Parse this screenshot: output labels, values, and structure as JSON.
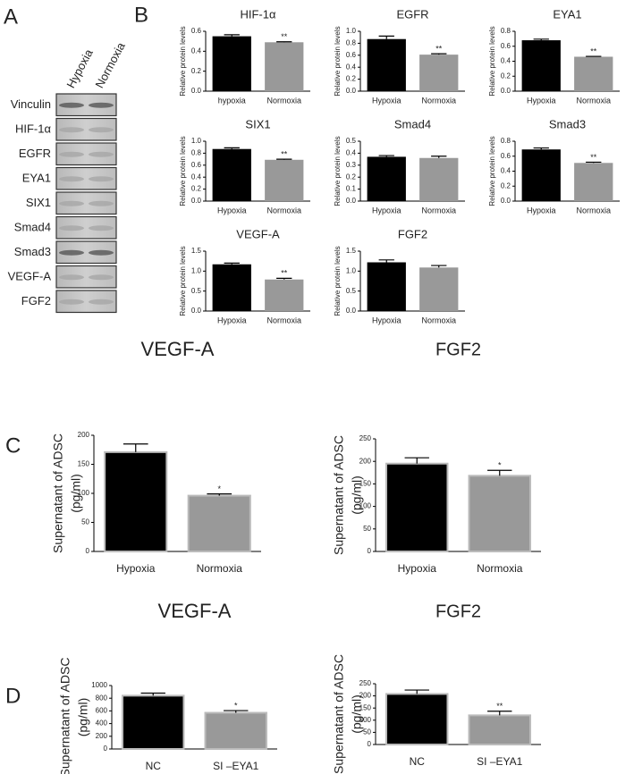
{
  "panel_labels": [
    "A",
    "B",
    "C",
    "D"
  ],
  "blot": {
    "columns": [
      "Hypoxia",
      "Normoxia"
    ],
    "rows": [
      "Vinculin",
      "HIF-1α",
      "EGFR",
      "EYA1",
      "SIX1",
      "Smad4",
      "Smad3",
      "VEGF-A",
      "FGF2"
    ]
  },
  "chart_data": [
    {
      "type": "bar",
      "title": "HIF-1α",
      "ylabel": "Relative protein levels",
      "categories": [
        "hypoxia",
        "Normoxia"
      ],
      "values": [
        0.55,
        0.49
      ],
      "errors": [
        0.015,
        0.005
      ],
      "significance": [
        null,
        "**"
      ],
      "colors": [
        "#000000",
        "#999999"
      ],
      "ylim": [
        0,
        0.6
      ],
      "yticks": [
        {
          "value": 0,
          "label": "0.0"
        },
        0.2,
        0.4,
        0.6
      ]
    },
    {
      "type": "bar",
      "title": "EGFR",
      "ylabel": "Relative protein levels",
      "categories": [
        "Hypoxia",
        "Normoxia"
      ],
      "values": [
        0.87,
        0.61
      ],
      "errors": [
        0.05,
        0.015
      ],
      "significance": [
        null,
        "**"
      ],
      "colors": [
        "#000000",
        "#999999"
      ],
      "ylim": [
        0,
        1
      ],
      "yticks": [
        {
          "value": 0,
          "label": "0.0"
        },
        0.2,
        0.4,
        0.6,
        0.8,
        {
          "value": 1,
          "label": "1.0"
        }
      ]
    },
    {
      "type": "bar",
      "title": "EYA1",
      "ylabel": "Relative protein levels",
      "categories": [
        "Hypoxia",
        "Normoxia"
      ],
      "values": [
        0.68,
        0.46
      ],
      "errors": [
        0.015,
        0.005
      ],
      "significance": [
        null,
        "**"
      ],
      "colors": [
        "#000000",
        "#999999"
      ],
      "ylim": [
        0,
        0.8
      ],
      "yticks": [
        {
          "value": 0,
          "label": "0.0"
        },
        0.2,
        0.4,
        0.6,
        0.8
      ]
    },
    {
      "type": "bar",
      "title": "SIX1",
      "ylabel": "Relative protein levels",
      "categories": [
        "Hypoxia",
        "Normoxia"
      ],
      "values": [
        0.87,
        0.69
      ],
      "errors": [
        0.02,
        0.01
      ],
      "significance": [
        null,
        "**"
      ],
      "colors": [
        "#000000",
        "#999999"
      ],
      "ylim": [
        0,
        1
      ],
      "yticks": [
        {
          "value": 0,
          "label": "0.0"
        },
        0.2,
        0.4,
        0.6,
        0.8,
        {
          "value": 1,
          "label": "1.0"
        }
      ]
    },
    {
      "type": "bar",
      "title": "Smad4",
      "ylabel": "Relative protein levels",
      "categories": [
        "Hypoxia",
        "Normoxia"
      ],
      "values": [
        0.37,
        0.36
      ],
      "errors": [
        0.01,
        0.015
      ],
      "significance": [
        null,
        null
      ],
      "colors": [
        "#000000",
        "#999999"
      ],
      "ylim": [
        0,
        0.5
      ],
      "yticks": [
        {
          "value": 0,
          "label": "0.0"
        },
        0.1,
        0.2,
        0.3,
        0.4,
        0.5
      ]
    },
    {
      "type": "bar",
      "title": "Smad3",
      "ylabel": "Relative protein levels",
      "categories": [
        "Hypoxia",
        "Normoxia"
      ],
      "values": [
        0.69,
        0.51
      ],
      "errors": [
        0.02,
        0.01
      ],
      "significance": [
        null,
        "**"
      ],
      "colors": [
        "#000000",
        "#999999"
      ],
      "ylim": [
        0,
        0.8
      ],
      "yticks": [
        {
          "value": 0,
          "label": "0.0"
        },
        0.2,
        0.4,
        0.6,
        0.8
      ]
    },
    {
      "type": "bar",
      "title": "VEGF-A",
      "ylabel": "Relative protein levels",
      "categories": [
        "Hypoxia",
        "Normoxia"
      ],
      "values": [
        1.17,
        0.79
      ],
      "errors": [
        0.03,
        0.03
      ],
      "significance": [
        null,
        "**"
      ],
      "colors": [
        "#000000",
        "#999999"
      ],
      "ylim": [
        0,
        1.5
      ],
      "yticks": [
        {
          "value": 0,
          "label": "0.0"
        },
        0.5,
        {
          "value": 1,
          "label": "1.0"
        },
        1.5
      ]
    },
    {
      "type": "bar",
      "title": "FGF2",
      "ylabel": "Relative protein levels",
      "categories": [
        "Hypoxia",
        "Normoxia"
      ],
      "values": [
        1.22,
        1.09
      ],
      "errors": [
        0.06,
        0.05
      ],
      "significance": [
        null,
        null
      ],
      "colors": [
        "#000000",
        "#999999"
      ],
      "ylim": [
        0,
        1.5
      ],
      "yticks": [
        {
          "value": 0,
          "label": "0.0"
        },
        0.5,
        {
          "value": 1,
          "label": "1.0"
        },
        1.5
      ]
    },
    {
      "type": "bar",
      "title": "VEGF-A",
      "ylabel": [
        "Supernatant of ADSC",
        "(pg/ml)"
      ],
      "categories": [
        "Hypoxia",
        "Normoxia"
      ],
      "values": [
        171,
        96
      ],
      "errors": [
        14,
        3
      ],
      "significance": [
        null,
        "*"
      ],
      "colors": [
        "#000000",
        "#999999"
      ],
      "ylim": [
        0,
        200
      ],
      "yticks": [
        0,
        50,
        100,
        150,
        200
      ]
    },
    {
      "type": "bar",
      "title": "FGF2",
      "ylabel": [
        "Supernatant of ADSC",
        "(pg/ml)"
      ],
      "categories": [
        "Hypoxia",
        "Normoxia"
      ],
      "values": [
        195,
        168
      ],
      "errors": [
        13,
        12
      ],
      "significance": [
        null,
        "*"
      ],
      "colors": [
        "#000000",
        "#999999"
      ],
      "ylim": [
        0,
        250
      ],
      "yticks": [
        0,
        50,
        100,
        150,
        200,
        250
      ]
    },
    {
      "type": "bar",
      "title": "VEGF-A",
      "ylabel": [
        "Supernatant of ADSC",
        "(pg/ml)"
      ],
      "categories": [
        "NC",
        "SI –EYA1"
      ],
      "values": [
        840,
        570
      ],
      "errors": [
        40,
        35
      ],
      "significance": [
        null,
        "*"
      ],
      "colors": [
        "#000000",
        "#999999"
      ],
      "ylim": [
        0,
        1000
      ],
      "yticks": [
        0,
        200,
        400,
        600,
        800,
        1000
      ]
    },
    {
      "type": "bar",
      "title": "FGF2",
      "ylabel": [
        "Supernatant of ADSC",
        "(pg/ml)"
      ],
      "categories": [
        "NC",
        "SI –EYA1"
      ],
      "values": [
        208,
        120
      ],
      "errors": [
        16,
        17
      ],
      "significance": [
        null,
        "**"
      ],
      "colors": [
        "#000000",
        "#999999"
      ],
      "ylim": [
        0,
        250
      ],
      "yticks": [
        0,
        50,
        100,
        150,
        200,
        250
      ]
    }
  ]
}
